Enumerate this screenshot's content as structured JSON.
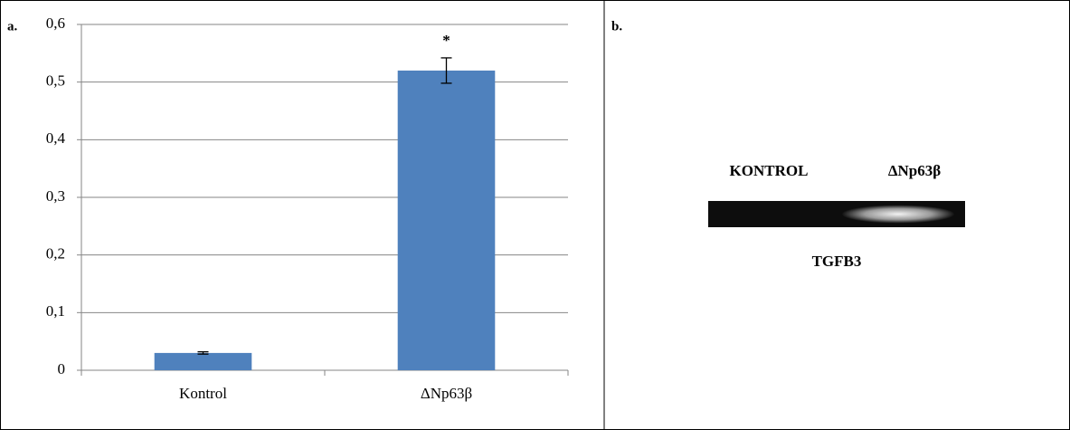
{
  "chart_data": {
    "type": "bar",
    "panel_label": "a.",
    "categories": [
      "Kontrol",
      "ΔNp63β"
    ],
    "values": [
      0.03,
      0.52
    ],
    "errors": [
      0.002,
      0.022
    ],
    "color": "#4f81bd",
    "annotations": [
      null,
      "*"
    ],
    "ylim": [
      0,
      0.6
    ],
    "yticks": [
      0,
      {
        "value": 0.1,
        "label": "0,1"
      },
      {
        "value": 0.2,
        "label": "0,2"
      },
      {
        "value": 0.3,
        "label": "0,3"
      },
      {
        "value": 0.4,
        "label": "0,4"
      },
      {
        "value": 0.5,
        "label": "0,5"
      },
      {
        "value": 0.6,
        "label": "0,6"
      }
    ],
    "grid": true
  },
  "gel": {
    "panel_label": "b.",
    "lanes": [
      "KONTROL",
      "ΔNp63β"
    ],
    "gene": "TGFB3"
  }
}
